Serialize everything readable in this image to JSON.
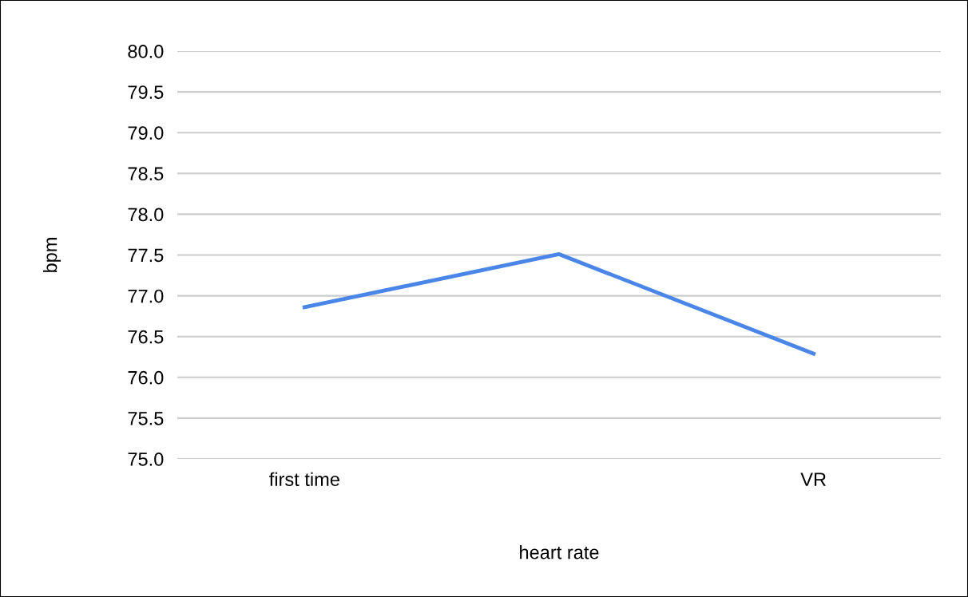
{
  "chart_data": {
    "type": "line",
    "xlabel": "heart rate",
    "ylabel": "bpm",
    "categories": [
      "first time",
      null,
      "VR"
    ],
    "series": [
      {
        "color": "#4a86e8",
        "values": [
          76.86,
          77.51,
          76.29
        ]
      }
    ],
    "ylim": [
      75,
      80
    ],
    "yticks": [
      {
        "value": 75,
        "label": "75.0"
      },
      {
        "value": 75.5,
        "label": "75.5"
      },
      {
        "value": 76,
        "label": "76.0"
      },
      {
        "value": 76.5,
        "label": "76.5"
      },
      {
        "value": 77,
        "label": "77.0"
      },
      {
        "value": 77.5,
        "label": "77.5"
      },
      {
        "value": 78,
        "label": "78.0"
      },
      {
        "value": 78.5,
        "label": "78.5"
      },
      {
        "value": 79,
        "label": "79.0"
      },
      {
        "value": 79.5,
        "label": "79.5"
      },
      {
        "value": 80,
        "label": "80.0"
      }
    ],
    "grid": "y",
    "legend": false,
    "marker": "none",
    "line_style": "solid"
  }
}
